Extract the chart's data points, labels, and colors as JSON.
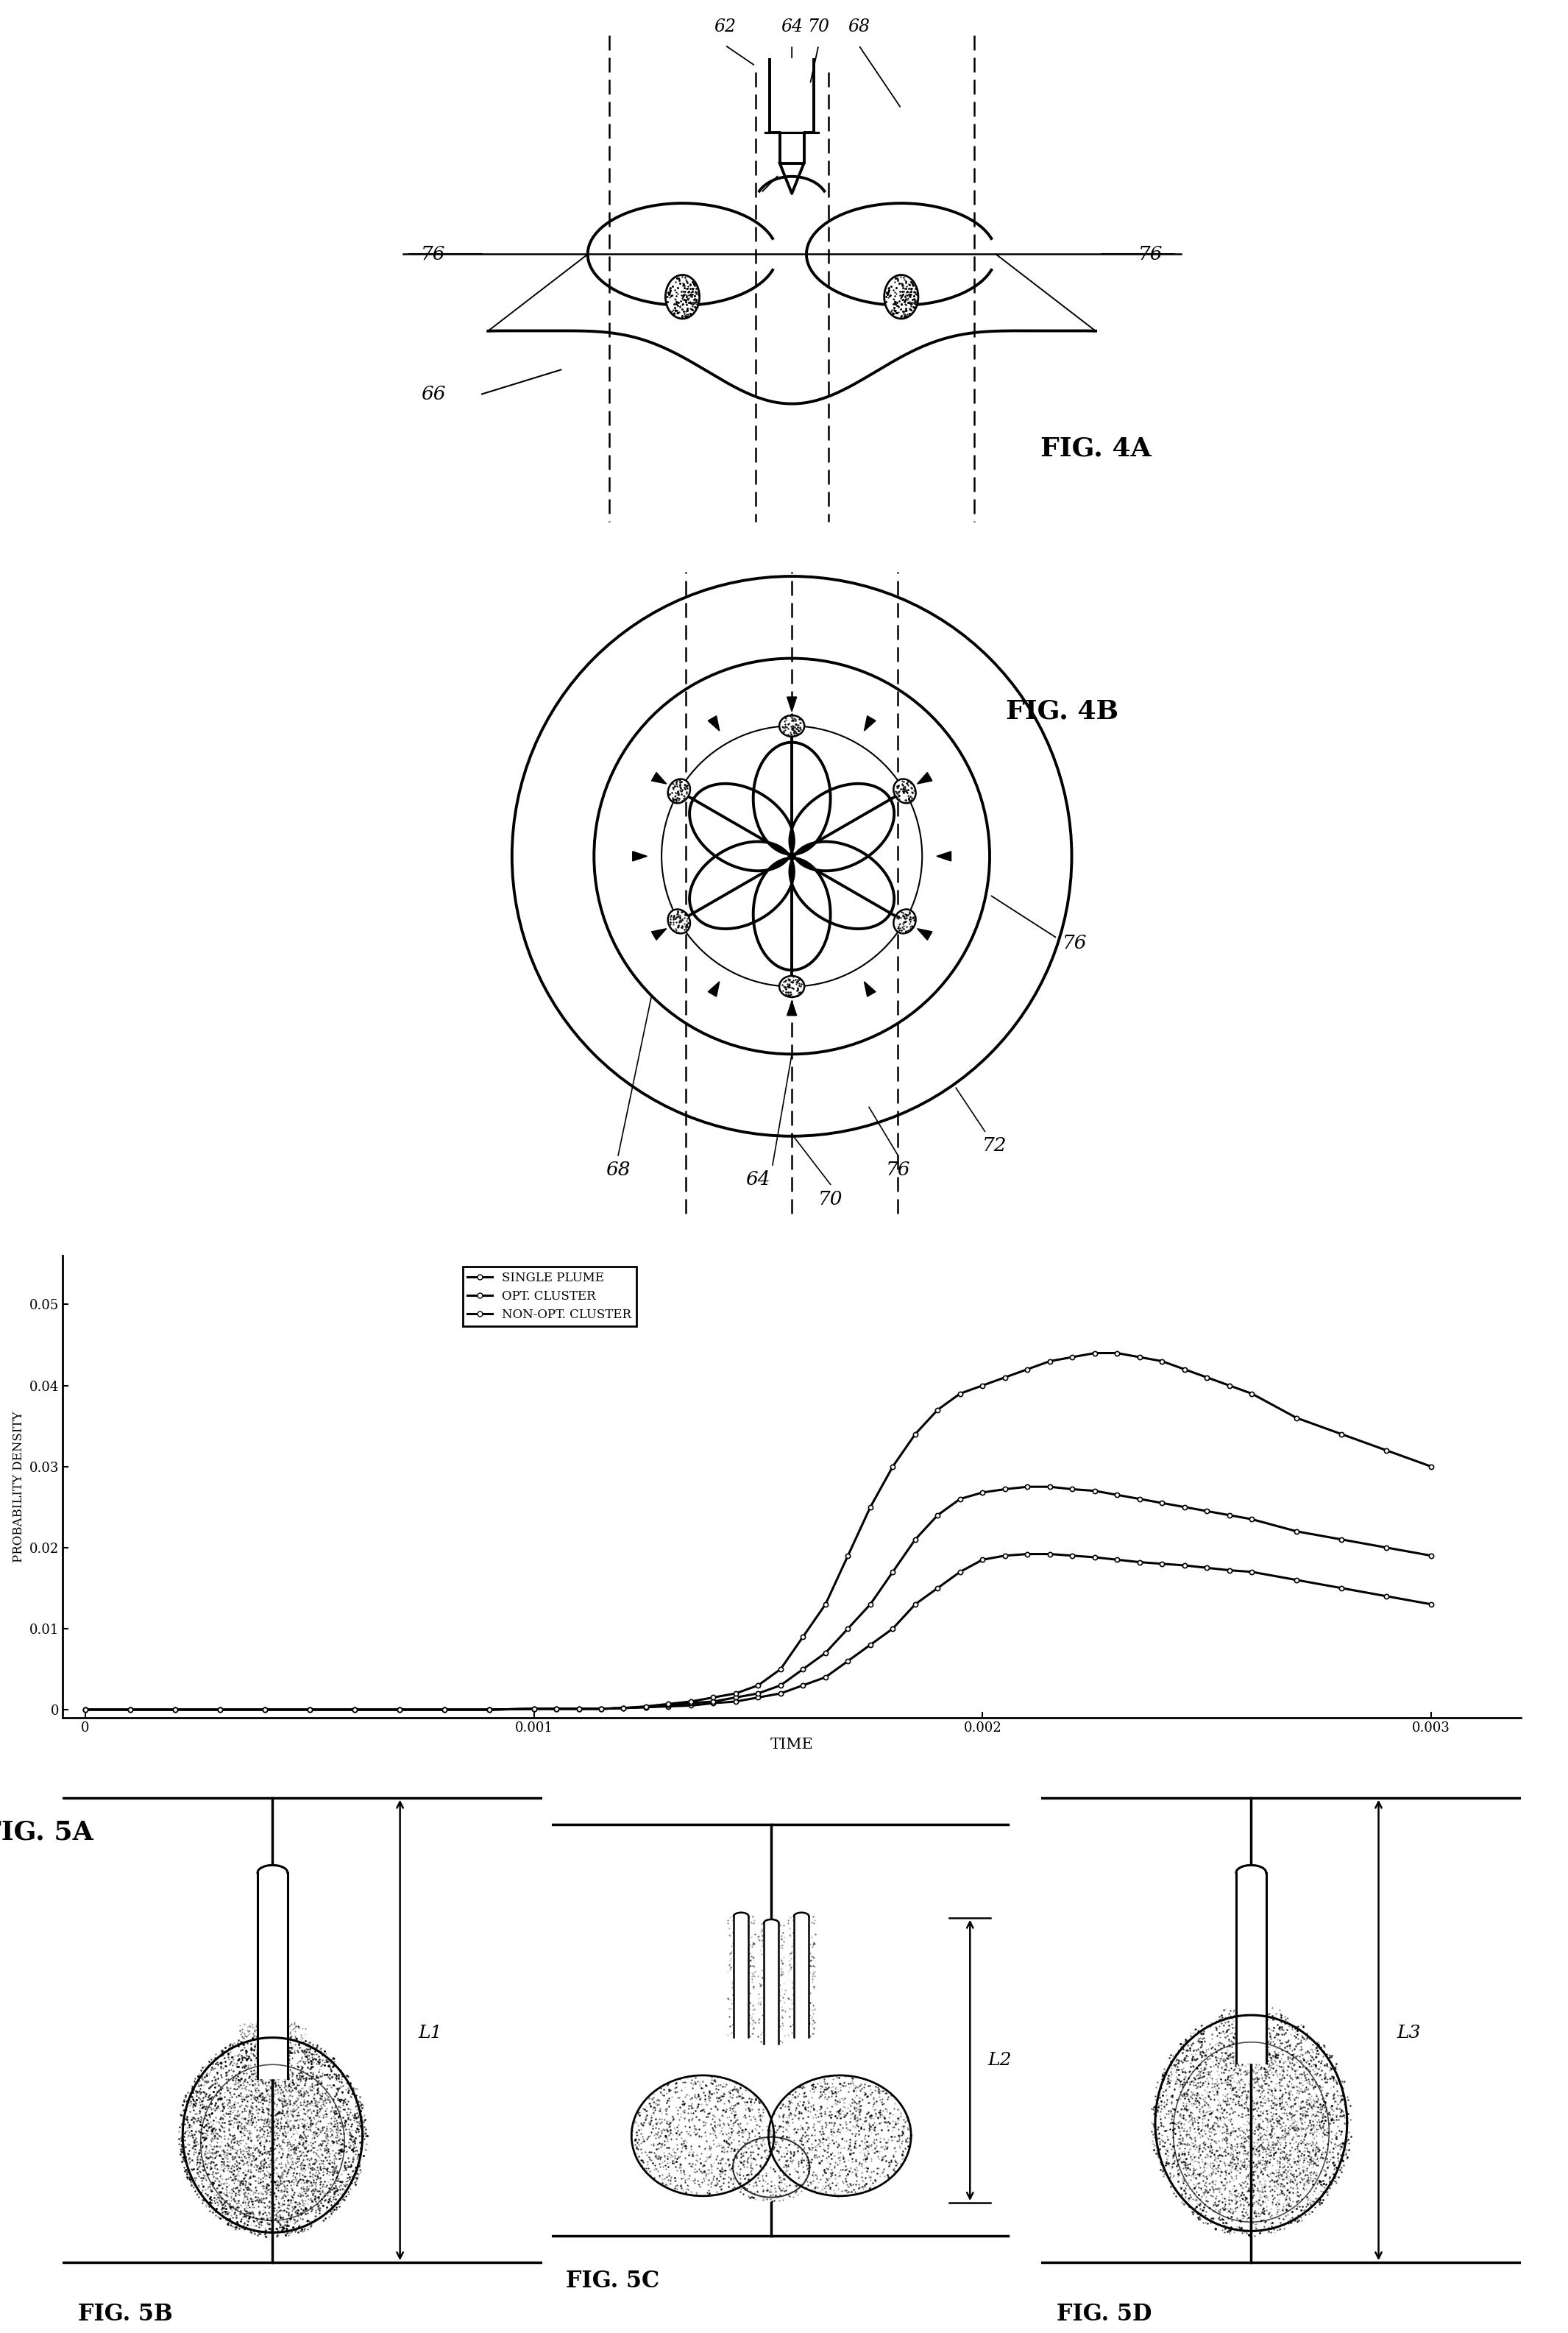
{
  "fig_width": 21.31,
  "fig_height": 31.7,
  "background_color": "#ffffff",
  "plot_data": {
    "time": [
      0,
      0.0001,
      0.0002,
      0.0003,
      0.0004,
      0.0005,
      0.0006,
      0.0007,
      0.0008,
      0.0009,
      0.001,
      0.00105,
      0.0011,
      0.00115,
      0.0012,
      0.00125,
      0.0013,
      0.00135,
      0.0014,
      0.00145,
      0.0015,
      0.00155,
      0.0016,
      0.00165,
      0.0017,
      0.00175,
      0.0018,
      0.00185,
      0.0019,
      0.00195,
      0.002,
      0.00205,
      0.0021,
      0.00215,
      0.0022,
      0.00225,
      0.0023,
      0.00235,
      0.0024,
      0.00245,
      0.0025,
      0.00255,
      0.0026,
      0.0027,
      0.0028,
      0.0029,
      0.003
    ],
    "single_plume": [
      0,
      0,
      0,
      0,
      0,
      0,
      0,
      0,
      0,
      0,
      0.0001,
      0.0001,
      0.0001,
      0.0001,
      0.0002,
      0.0003,
      0.0004,
      0.0005,
      0.0008,
      0.001,
      0.0015,
      0.002,
      0.003,
      0.004,
      0.006,
      0.008,
      0.01,
      0.013,
      0.015,
      0.017,
      0.0185,
      0.019,
      0.0192,
      0.0192,
      0.019,
      0.0188,
      0.0185,
      0.0182,
      0.018,
      0.0178,
      0.0175,
      0.0172,
      0.017,
      0.016,
      0.015,
      0.014,
      0.013
    ],
    "opt_cluster": [
      0,
      0,
      0,
      0,
      0,
      0,
      0,
      0,
      0,
      0,
      0.0001,
      0.0001,
      0.0001,
      0.0001,
      0.0002,
      0.0003,
      0.0005,
      0.0008,
      0.001,
      0.0015,
      0.002,
      0.003,
      0.005,
      0.007,
      0.01,
      0.013,
      0.017,
      0.021,
      0.024,
      0.026,
      0.0268,
      0.0272,
      0.0275,
      0.0275,
      0.0272,
      0.027,
      0.0265,
      0.026,
      0.0255,
      0.025,
      0.0245,
      0.024,
      0.0235,
      0.022,
      0.021,
      0.02,
      0.019
    ],
    "non_opt_cluster": [
      0,
      0,
      0,
      0,
      0,
      0,
      0,
      0,
      0,
      0,
      0.0001,
      0.0001,
      0.0001,
      0.0001,
      0.0002,
      0.0004,
      0.0007,
      0.001,
      0.0015,
      0.002,
      0.003,
      0.005,
      0.009,
      0.013,
      0.019,
      0.025,
      0.03,
      0.034,
      0.037,
      0.039,
      0.04,
      0.041,
      0.042,
      0.043,
      0.0435,
      0.044,
      0.044,
      0.0435,
      0.043,
      0.042,
      0.041,
      0.04,
      0.039,
      0.036,
      0.034,
      0.032,
      0.03
    ]
  }
}
